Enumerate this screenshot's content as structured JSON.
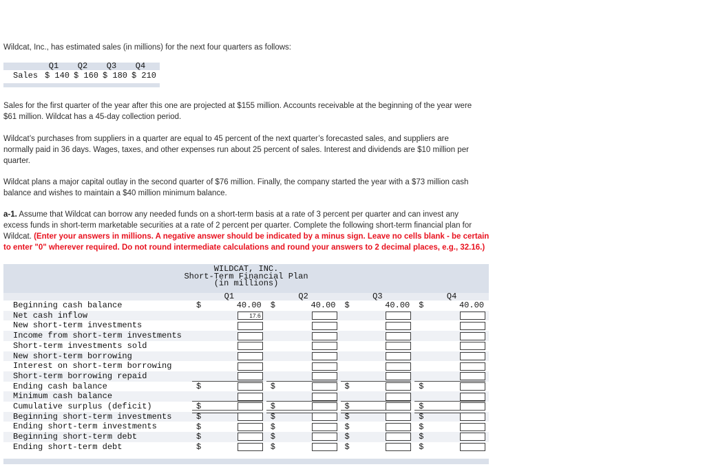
{
  "page": {
    "intro": "Wildcat, Inc., has estimated sales (in millions) for the next four quarters as follows:",
    "paragraphs": [
      "Sales for the first quarter of the year after this one are projected at $155 million. Accounts receivable at the beginning of the year were\n$61 million. Wildcat has a 45-day collection period.",
      "Wildcat’s purchases from suppliers in a quarter are equal to 45 percent of the next quarter’s forecasted sales, and suppliers are\nnormally paid in 36 days. Wages, taxes, and other expenses run about 25 percent of sales. Interest and dividends are $10 million per\nquarter.",
      "Wildcat plans a major capital outlay in the second quarter of $76 million. Finally, the company started the year with a $73 million cash\nbalance and wishes to maintain a $40 million minimum balance."
    ],
    "question": {
      "prefix": "a-1.",
      "body": " Assume that Wildcat can borrow any needed funds on a short-term basis at a rate of 3 percent per quarter and can invest any\nexcess funds in short-term marketable securities at a rate of 2 percent per quarter. Complete the following short-term financial plan for\nWildcat. ",
      "instruction": "(Enter your answers in millions. A negative answer should be indicated by a minus sign. Leave no cells blank - be certain\nto enter \"0\" wherever required. Do not round intermediate calculations and round your answers to 2 decimal places, e.g., 32.16.)"
    }
  },
  "sales_table": {
    "row_label": "Sales",
    "columns": [
      "Q1",
      "Q2",
      "Q3",
      "Q4"
    ],
    "values": [
      "$ 140",
      "$ 160",
      "$ 180",
      "$ 210"
    ]
  },
  "plan_table": {
    "title_lines": [
      "WILDCAT, INC.",
      "Short-Term Financial Plan",
      "(in millions)"
    ],
    "quarters": [
      "Q1",
      "Q2",
      "Q3",
      "Q4"
    ],
    "currency_symbol": "$",
    "rows": [
      {
        "label": "Beginning cash balance",
        "type": "static",
        "values": [
          "40.00",
          "40.00",
          "40.00",
          "40.00"
        ]
      },
      {
        "label": "Net cash inflow",
        "type": "input",
        "inputs": [
          "17.6",
          "",
          "",
          ""
        ]
      },
      {
        "label": "New short-term investments",
        "type": "input",
        "inputs": [
          "",
          "",
          "",
          ""
        ]
      },
      {
        "label": "Income from short-term investments",
        "type": "input",
        "inputs": [
          "",
          "",
          "",
          ""
        ]
      },
      {
        "label": "Short-term investments sold",
        "type": "input",
        "inputs": [
          "",
          "",
          "",
          ""
        ]
      },
      {
        "label": "New short-term borrowing",
        "type": "input",
        "inputs": [
          "",
          "",
          "",
          ""
        ]
      },
      {
        "label": "Interest on short-term borrowing",
        "type": "input",
        "inputs": [
          "",
          "",
          "",
          ""
        ]
      },
      {
        "label": "Short-term borrowing repaid",
        "type": "input",
        "inputs": [
          "",
          "",
          "",
          ""
        ]
      },
      {
        "label": "Ending cash balance",
        "type": "dollar_input",
        "rule_above": true,
        "inputs": [
          "",
          "",
          "",
          ""
        ]
      },
      {
        "label": "Minimum cash balance",
        "type": "input",
        "inputs": [
          "",
          "",
          "",
          ""
        ]
      },
      {
        "label": "Cumulative surplus (deficit)",
        "type": "dollar_input",
        "rule_above": true,
        "double_rule_below": true,
        "inputs": [
          "",
          "",
          "",
          ""
        ]
      },
      {
        "label": "Beginning short-term investments",
        "type": "dollar_input",
        "inputs": [
          "",
          "",
          "",
          ""
        ]
      },
      {
        "label": "Ending short-term investments",
        "type": "dollar_input",
        "inputs": [
          "",
          "",
          "",
          ""
        ]
      },
      {
        "label": "Beginning short-term debt",
        "type": "dollar_input",
        "inputs": [
          "",
          "",
          "",
          ""
        ]
      },
      {
        "label": "Ending short-term debt",
        "type": "dollar_input",
        "inputs": [
          "",
          "",
          "",
          ""
        ]
      }
    ]
  },
  "colors": {
    "header_strip": "#dae0ea",
    "quarter_row": "#e8ebf1",
    "alt_row": "#eff1f5",
    "red_instruction": "#e8121f"
  }
}
